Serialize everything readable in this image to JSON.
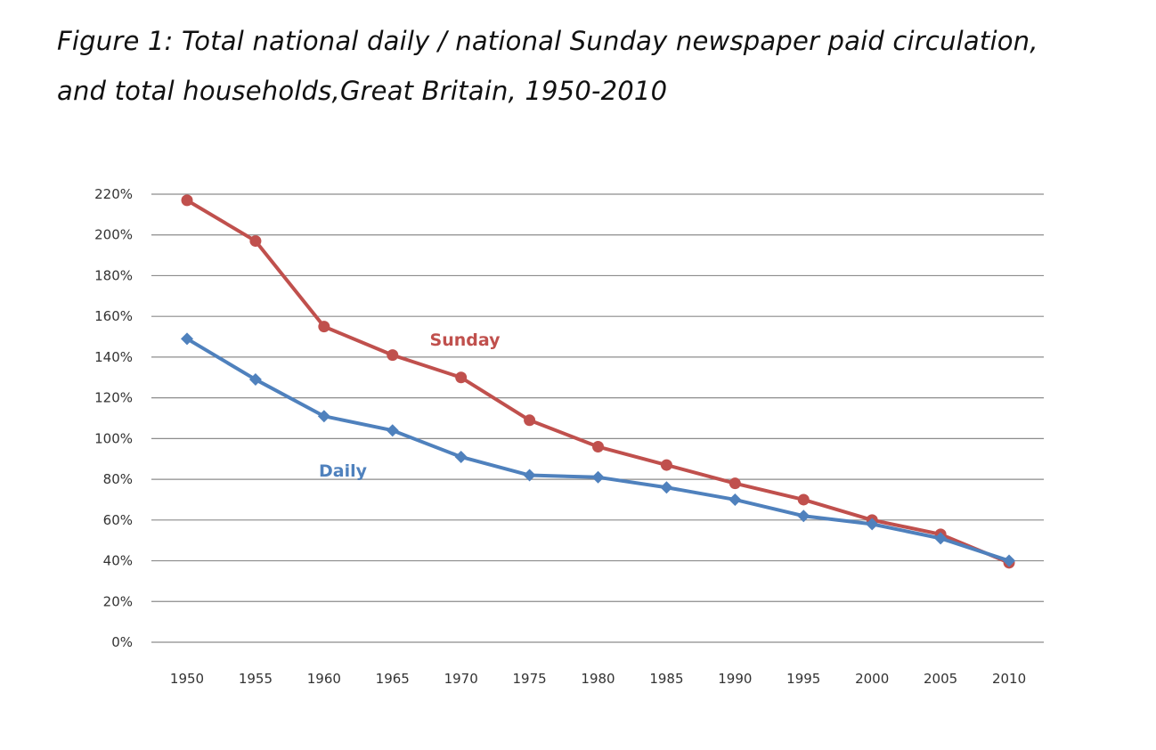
{
  "figure": {
    "title_line1": "Figure 1: Total national daily / national Sunday newspaper paid circulation,",
    "title_line2": "and total households,Great Britain, 1950-2010"
  },
  "chart_data": {
    "type": "line",
    "title": "Figure 1: Total national daily / national Sunday newspaper paid circulation, and total households,Great Britain, 1950-2010",
    "xlabel": "",
    "ylabel": "",
    "x": [
      1950,
      1955,
      1960,
      1965,
      1970,
      1975,
      1980,
      1985,
      1990,
      1995,
      2000,
      2005,
      2010
    ],
    "ylim": [
      0,
      220
    ],
    "y_ticks": [
      0,
      20,
      40,
      60,
      80,
      100,
      120,
      140,
      160,
      180,
      200,
      220
    ],
    "y_tick_suffix": "%",
    "grid": "horizontal",
    "legend": "inline labels",
    "series": [
      {
        "name": "Sunday",
        "marker": "circle",
        "color": "#c0504d",
        "values": [
          217,
          197,
          155,
          141,
          130,
          109,
          96,
          87,
          78,
          70,
          60,
          53,
          39
        ]
      },
      {
        "name": "Daily",
        "marker": "diamond",
        "color": "#4f81bd",
        "values": [
          149,
          129,
          111,
          104,
          91,
          82,
          81,
          76,
          70,
          62,
          58,
          51,
          40
        ]
      }
    ]
  }
}
